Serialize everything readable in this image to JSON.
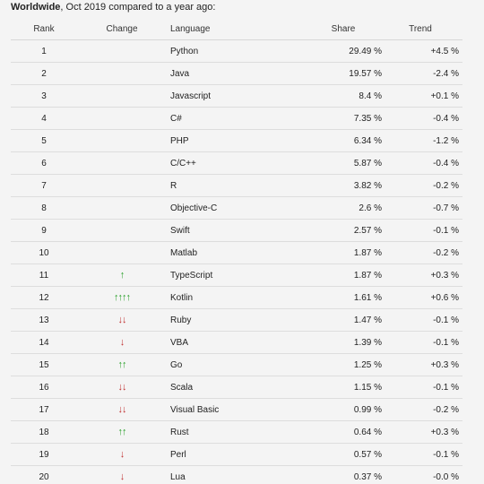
{
  "caption": {
    "bold": "Worldwide",
    "rest": ", Oct 2019 compared to a year ago:"
  },
  "headers": {
    "rank": "Rank",
    "change": "Change",
    "language": "Language",
    "share": "Share",
    "trend": "Trend"
  },
  "colors": {
    "up": "#2aa02a",
    "down": "#c03030"
  },
  "rows": [
    {
      "rank": "1",
      "change": "",
      "language": "Python",
      "share": "29.49 %",
      "trend": "+4.5 %"
    },
    {
      "rank": "2",
      "change": "",
      "language": "Java",
      "share": "19.57 %",
      "trend": "-2.4 %"
    },
    {
      "rank": "3",
      "change": "",
      "language": "Javascript",
      "share": "8.4 %",
      "trend": "+0.1 %"
    },
    {
      "rank": "4",
      "change": "",
      "language": "C#",
      "share": "7.35 %",
      "trend": "-0.4 %"
    },
    {
      "rank": "5",
      "change": "",
      "language": "PHP",
      "share": "6.34 %",
      "trend": "-1.2 %"
    },
    {
      "rank": "6",
      "change": "",
      "language": "C/C++",
      "share": "5.87 %",
      "trend": "-0.4 %"
    },
    {
      "rank": "7",
      "change": "",
      "language": "R",
      "share": "3.82 %",
      "trend": "-0.2 %"
    },
    {
      "rank": "8",
      "change": "",
      "language": "Objective-C",
      "share": "2.6 %",
      "trend": "-0.7 %"
    },
    {
      "rank": "9",
      "change": "",
      "language": "Swift",
      "share": "2.57 %",
      "trend": "-0.1 %"
    },
    {
      "rank": "10",
      "change": "",
      "language": "Matlab",
      "share": "1.87 %",
      "trend": "-0.2 %"
    },
    {
      "rank": "11",
      "change": "↑",
      "language": "TypeScript",
      "share": "1.87 %",
      "trend": "+0.3 %"
    },
    {
      "rank": "12",
      "change": "↑↑↑↑",
      "language": "Kotlin",
      "share": "1.61 %",
      "trend": "+0.6 %"
    },
    {
      "rank": "13",
      "change": "↓↓",
      "language": "Ruby",
      "share": "1.47 %",
      "trend": "-0.1 %"
    },
    {
      "rank": "14",
      "change": "↓",
      "language": "VBA",
      "share": "1.39 %",
      "trend": "-0.1 %"
    },
    {
      "rank": "15",
      "change": "↑↑",
      "language": "Go",
      "share": "1.25 %",
      "trend": "+0.3 %"
    },
    {
      "rank": "16",
      "change": "↓↓",
      "language": "Scala",
      "share": "1.15 %",
      "trend": "-0.1 %"
    },
    {
      "rank": "17",
      "change": "↓↓",
      "language": "Visual Basic",
      "share": "0.99 %",
      "trend": "-0.2 %"
    },
    {
      "rank": "18",
      "change": "↑↑",
      "language": "Rust",
      "share": "0.64 %",
      "trend": "+0.3 %"
    },
    {
      "rank": "19",
      "change": "↓",
      "language": "Perl",
      "share": "0.57 %",
      "trend": "-0.1 %"
    },
    {
      "rank": "20",
      "change": "↓",
      "language": "Lua",
      "share": "0.37 %",
      "trend": "-0.0 %"
    }
  ]
}
